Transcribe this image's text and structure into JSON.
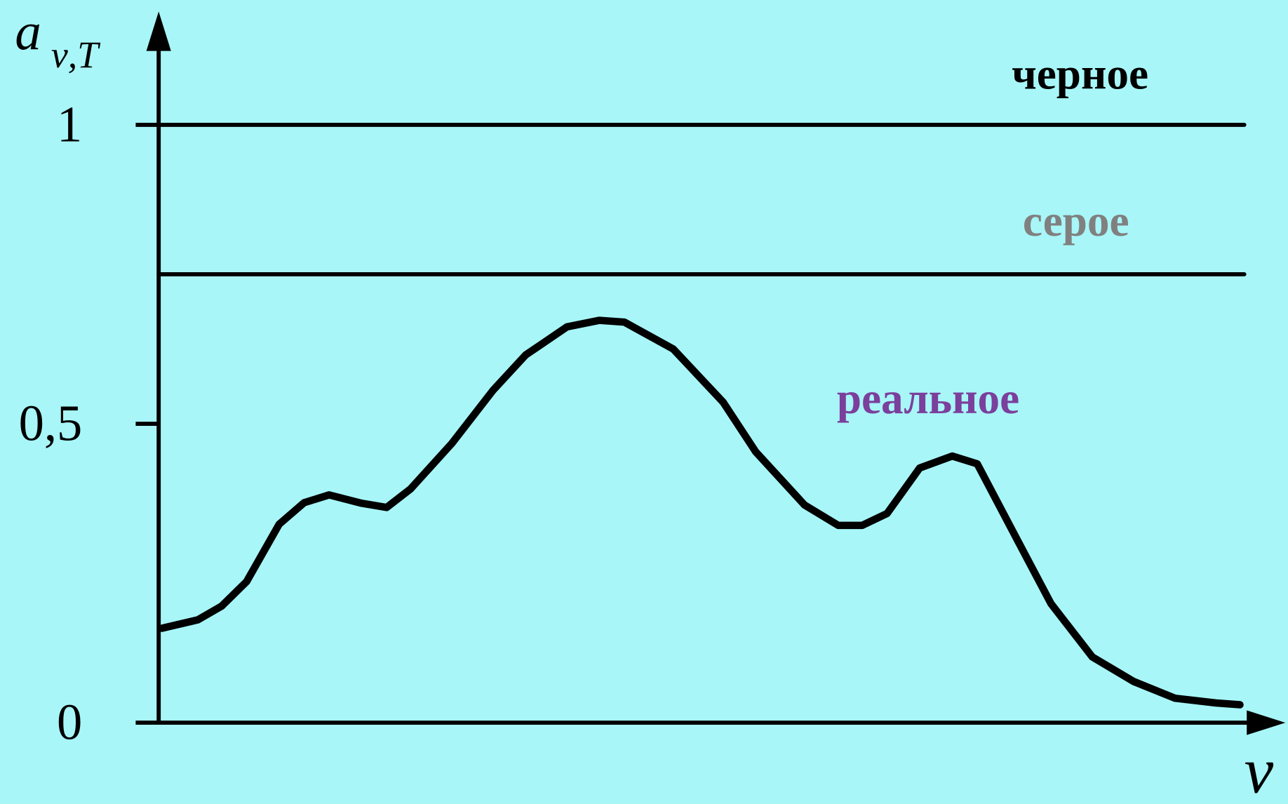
{
  "chart_data": {
    "type": "line",
    "ylabel": "a",
    "ylabel_sub": "ν,T",
    "xlabel": "ν",
    "xlim": [
      0,
      100
    ],
    "ylim": [
      0,
      1
    ],
    "yticks": [
      0,
      {
        "value": 0.5,
        "label": "0,5"
      },
      1
    ],
    "series": [
      {
        "name": "черное",
        "color": "#000000",
        "label_color": "#000000",
        "x": [
          0,
          100
        ],
        "values": [
          1,
          1
        ]
      },
      {
        "name": "серое",
        "color": "#000000",
        "label_color": "#808080",
        "x": [
          0,
          100
        ],
        "values": [
          0.75,
          0.75
        ]
      },
      {
        "name": "реальное",
        "color": "#000000",
        "label_color": "#7b3f9c",
        "x": [
          0.3,
          3.6,
          5.8,
          8.1,
          11.1,
          13.4,
          15.7,
          18.7,
          21.0,
          23.2,
          27.0,
          30.8,
          33.8,
          37.6,
          40.6,
          42.9,
          47.4,
          52.0,
          55.0,
          59.5,
          62.6,
          64.8,
          67.1,
          70.1,
          73.1,
          75.4,
          79.2,
          82.2,
          86.0,
          89.8,
          93.6,
          97.4,
          99.6
        ],
        "values": [
          0.158,
          0.172,
          0.195,
          0.236,
          0.332,
          0.368,
          0.381,
          0.367,
          0.36,
          0.391,
          0.467,
          0.556,
          0.615,
          0.662,
          0.673,
          0.67,
          0.625,
          0.536,
          0.453,
          0.364,
          0.33,
          0.33,
          0.35,
          0.426,
          0.446,
          0.433,
          0.302,
          0.199,
          0.11,
          0.069,
          0.041,
          0.033,
          0.03
        ]
      }
    ]
  }
}
